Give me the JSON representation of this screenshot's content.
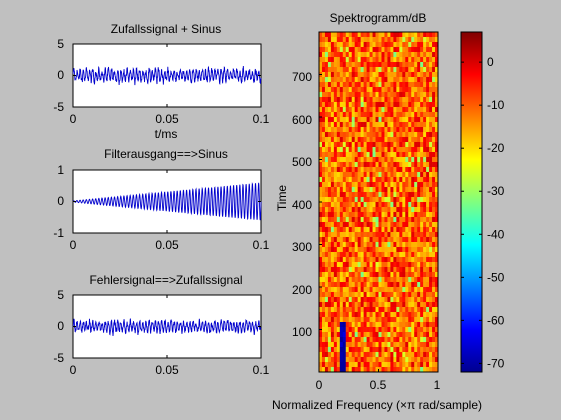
{
  "figure": {
    "background": "#c0c0c0",
    "axes_background": "#ffffff",
    "line_color": "#0000cc"
  },
  "chart_data": [
    {
      "type": "line",
      "title": "Zufallssignal + Sinus",
      "xlabel": "t/ms",
      "ylabel": "",
      "xlim": [
        0,
        0.1
      ],
      "ylim": [
        -5,
        5
      ],
      "xticks": [
        0,
        0.05,
        0.1
      ],
      "xtick_labels": [
        "0",
        "0.05",
        "0.1"
      ],
      "yticks": [
        -5,
        0,
        5
      ],
      "ytick_labels": [
        "-5",
        "0",
        "5"
      ],
      "series": [
        {
          "description": "noise plus sinusoid, amplitude about 1 to 2",
          "x_range": [
            0,
            0.1
          ],
          "n_points": 800,
          "amplitude": 1.6
        }
      ]
    },
    {
      "type": "line",
      "title": "Filterausgang==>Sinus",
      "xlabel": "",
      "ylabel": "",
      "xlim": [
        0,
        0.1
      ],
      "ylim": [
        -1,
        1
      ],
      "xticks": [
        0,
        0.05,
        0.1
      ],
      "xtick_labels": [
        "0",
        "0.05",
        "0.1"
      ],
      "yticks": [
        -1,
        0,
        1
      ],
      "ytick_labels": [
        "-1",
        "0",
        "1"
      ],
      "series": [
        {
          "description": "sinusoid with amplitude growing from about 0.02 to 0.6",
          "x_range": [
            0,
            0.1
          ],
          "n_points": 800,
          "amplitude_start": 0.02,
          "amplitude_end": 0.6,
          "cycles": 60
        }
      ]
    },
    {
      "type": "line",
      "title": "Fehlersignal==>Zufallssignal",
      "xlabel": "",
      "ylabel": "",
      "xlim": [
        0,
        0.1
      ],
      "ylim": [
        -5,
        5
      ],
      "xticks": [
        0,
        0.05,
        0.1
      ],
      "xtick_labels": [
        "0",
        "0.05",
        "0.1"
      ],
      "yticks": [
        -5,
        0,
        5
      ],
      "ytick_labels": [
        "-5",
        "0",
        "5"
      ],
      "series": [
        {
          "description": "error signal, random noise with amplitude about 1 to 2",
          "x_range": [
            0,
            0.1
          ],
          "n_points": 800,
          "amplitude": 1.5
        }
      ]
    },
    {
      "type": "heatmap",
      "title": "Spektrogramm/dB",
      "xlabel": "Normalized Frequency  (×π rad/sample)",
      "ylabel": "Time",
      "xlim": [
        0,
        1
      ],
      "ylim": [
        0,
        800
      ],
      "xticks": [
        0,
        0.5,
        1
      ],
      "xtick_labels": [
        "0",
        "0.5",
        "1"
      ],
      "yticks": [
        100,
        200,
        300,
        400,
        500,
        600,
        700
      ],
      "ytick_labels": [
        "100",
        "200",
        "300",
        "400",
        "500",
        "600",
        "700"
      ],
      "zlim": [
        -72,
        7
      ],
      "typical_level_db": [
        -20,
        0
      ],
      "dark_band": {
        "x_center": 0.2,
        "width": 0.06,
        "y_range": [
          0,
          120
        ],
        "level_db": -70
      },
      "colorbar": {
        "ticks": [
          0,
          -10,
          -20,
          -30,
          -40,
          -50,
          -60,
          -70
        ],
        "tick_labels": [
          "0",
          "-10",
          "-20",
          "-30",
          "-40",
          "-50",
          "-60",
          "-70"
        ]
      }
    }
  ]
}
